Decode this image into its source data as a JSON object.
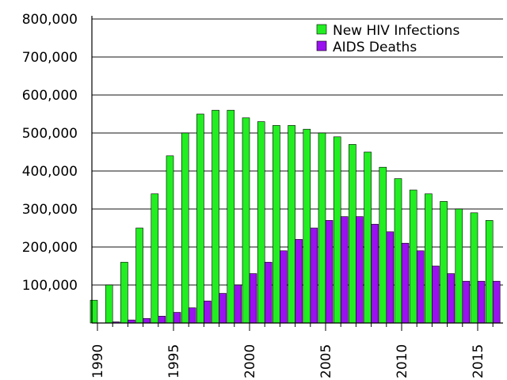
{
  "chart_data": {
    "type": "bar",
    "title": "",
    "xlabel": "",
    "ylabel": "",
    "ylim": [
      0,
      800000
    ],
    "yticks": [
      100000,
      200000,
      300000,
      400000,
      500000,
      600000,
      700000,
      800000
    ],
    "ytick_labels": [
      "100,000",
      "200,000",
      "300,000",
      "400,000",
      "500,000",
      "600,000",
      "700,000",
      "800,000"
    ],
    "xtick_values": [
      1990,
      1995,
      2000,
      2005,
      2010,
      2015
    ],
    "xtick_labels": [
      "1990",
      "1995",
      "2000",
      "2005",
      "2010",
      "2015"
    ],
    "grid": true,
    "legend_position": "top-right",
    "categories": [
      1990,
      1991,
      1992,
      1993,
      1994,
      1995,
      1996,
      1997,
      1998,
      1999,
      2000,
      2001,
      2002,
      2003,
      2004,
      2005,
      2006,
      2007,
      2008,
      2009,
      2010,
      2011,
      2012,
      2013,
      2014,
      2015,
      2016
    ],
    "series": [
      {
        "name": "New HIV Infections",
        "color": "#22ee22",
        "values": [
          60000,
          100000,
          160000,
          250000,
          340000,
          440000,
          500000,
          550000,
          560000,
          560000,
          540000,
          530000,
          520000,
          520000,
          510000,
          500000,
          490000,
          470000,
          450000,
          410000,
          380000,
          350000,
          340000,
          320000,
          300000,
          290000,
          270000
        ]
      },
      {
        "name": "AIDS Deaths",
        "color": "#9911ee",
        "values": [
          0,
          3000,
          8000,
          12000,
          18000,
          28000,
          40000,
          58000,
          78000,
          100000,
          130000,
          160000,
          190000,
          220000,
          250000,
          270000,
          280000,
          280000,
          260000,
          240000,
          210000,
          190000,
          150000,
          130000,
          110000,
          110000,
          110000
        ]
      }
    ]
  }
}
